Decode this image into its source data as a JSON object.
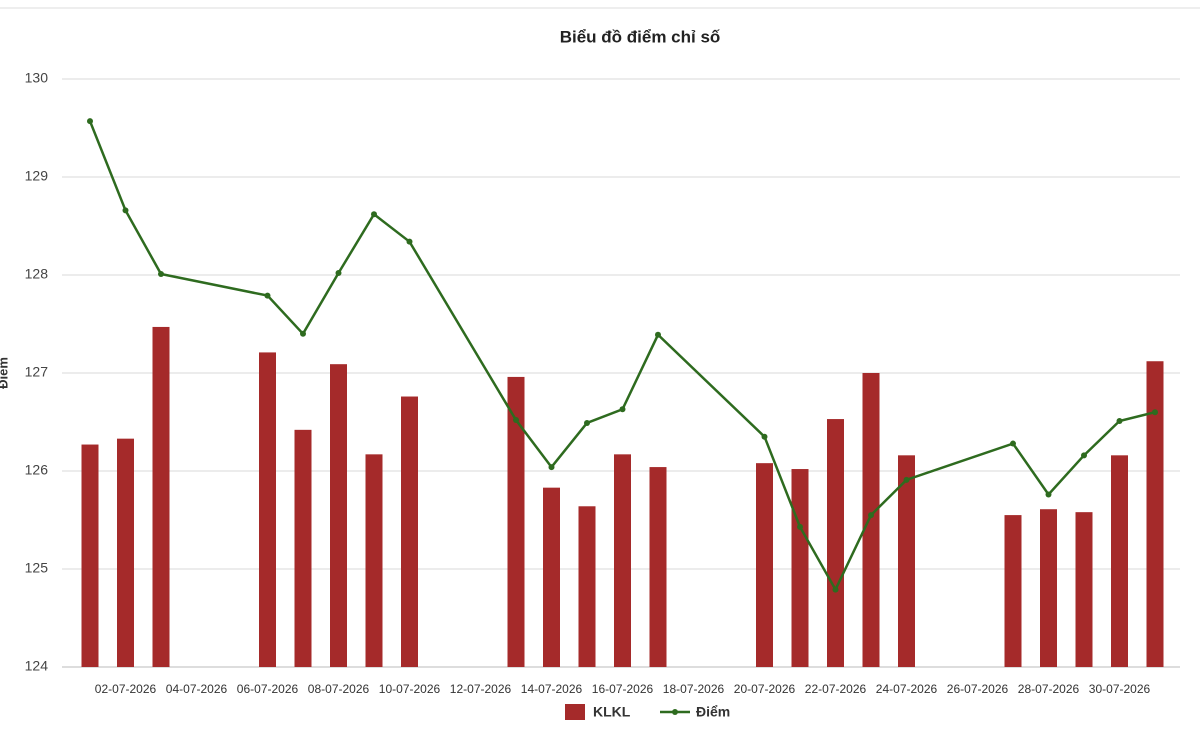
{
  "chart_data": {
    "type": "bar_line",
    "title": "Biểu đồ điểm chỉ số",
    "y_label": "Điểm",
    "categories": [
      null,
      "02-07-2026",
      null,
      "04-07-2026",
      null,
      "06-07-2026",
      null,
      "08-07-2026",
      null,
      "10-07-2026",
      null,
      "12-07-2026",
      null,
      "14-07-2026",
      null,
      "16-07-2026",
      null,
      "18-07-2026",
      null,
      "20-07-2026",
      null,
      "22-07-2026",
      null,
      "24-07-2026",
      null,
      "26-07-2026",
      null,
      "28-07-2026",
      null,
      "30-07-2026",
      null
    ],
    "series": [
      {
        "name": "KLKL",
        "type": "bar",
        "color": "#a52a2a",
        "values": [
          126.27,
          126.33,
          127.47,
          null,
          null,
          127.21,
          126.42,
          127.09,
          126.17,
          126.76,
          null,
          null,
          126.96,
          125.83,
          125.64,
          126.17,
          126.04,
          null,
          null,
          126.08,
          126.02,
          126.53,
          127.0,
          126.16,
          null,
          null,
          125.55,
          125.61,
          125.58,
          126.16,
          127.12
        ]
      },
      {
        "name": "Điểm",
        "type": "line",
        "color": "#2e6b1f",
        "values": [
          129.57,
          128.66,
          128.01,
          null,
          null,
          127.79,
          127.4,
          128.02,
          128.62,
          128.34,
          null,
          null,
          126.52,
          126.04,
          126.49,
          126.63,
          127.39,
          null,
          null,
          126.35,
          125.43,
          124.79,
          125.55,
          125.91,
          null,
          null,
          126.28,
          125.76,
          126.16,
          126.51,
          126.6
        ]
      }
    ],
    "span_gaps": true,
    "ylim": [
      124,
      130
    ],
    "yticks": [
      124,
      125,
      126,
      127,
      128,
      129,
      130
    ],
    "grid": true,
    "legend": "bottom"
  }
}
